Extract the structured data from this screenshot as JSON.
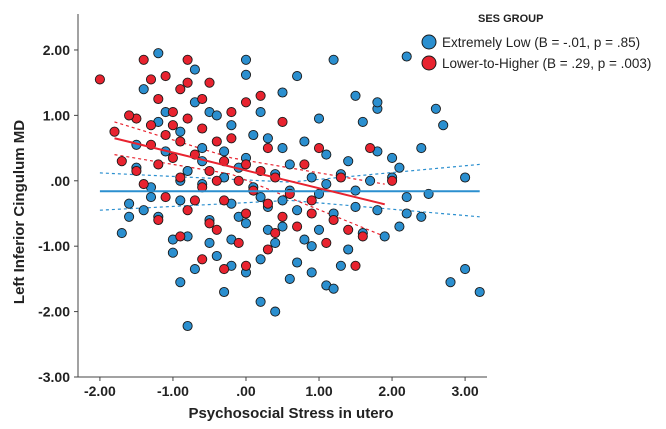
{
  "chart_data": {
    "type": "scatter",
    "xlabel": "Psychosocial Stress in utero",
    "ylabel": "Left Inferior Cingulum MD",
    "xlim": [
      -2.3,
      3.3
    ],
    "ylim": [
      -3.0,
      2.55
    ],
    "xticks": [
      -2.0,
      -1.0,
      0.0,
      1.0,
      2.0,
      3.0
    ],
    "xtick_labels": [
      "-2.00",
      "-1.00",
      ".00",
      "1.00",
      "2.00",
      "3.00"
    ],
    "yticks": [
      2.0,
      1.0,
      0.0,
      -1.0,
      -2.0,
      -3.0
    ],
    "ytick_labels": [
      "2.00",
      "1.00",
      ".00",
      "-1.00",
      "-2.00",
      "-3.00"
    ],
    "legend": {
      "title": "SES GROUP",
      "position": "top-right",
      "entries": [
        {
          "label": "Extremely Low (B = -.01, p = .85)",
          "color": "#2b8fcf"
        },
        {
          "label": "Lower-to-Higher (B = .29, p = .003)",
          "color": "#e8232f"
        }
      ]
    },
    "series": [
      {
        "name": "Extremely Low (B = -.01, p = .85)",
        "color": "#2b8fcf",
        "fit": {
          "x": [
            -2.0,
            3.2
          ],
          "y": [
            -0.16,
            -0.16
          ],
          "ci_upper_x": [
            -2.0,
            0.6,
            3.2
          ],
          "ci_upper_y": [
            0.12,
            -0.02,
            0.25
          ],
          "ci_lower_x": [
            -2.0,
            0.6,
            3.2
          ],
          "ci_lower_y": [
            -0.45,
            -0.3,
            -0.55
          ]
        },
        "points": [
          [
            -1.4,
            1.4
          ],
          [
            -0.7,
            1.2
          ],
          [
            -0.5,
            1.05
          ],
          [
            -1.2,
            0.9
          ],
          [
            -0.9,
            0.75
          ],
          [
            -0.2,
            0.85
          ],
          [
            0.1,
            0.7
          ],
          [
            0.3,
            0.65
          ],
          [
            -0.6,
            0.5
          ],
          [
            -1.1,
            0.45
          ],
          [
            -0.3,
            0.45
          ],
          [
            0.5,
            0.5
          ],
          [
            0.8,
            0.6
          ],
          [
            1.1,
            0.4
          ],
          [
            1.4,
            0.3
          ],
          [
            -1.5,
            0.2
          ],
          [
            -0.8,
            0.15
          ],
          [
            -0.1,
            0.2
          ],
          [
            0.4,
            0.1
          ],
          [
            0.9,
            0.05
          ],
          [
            1.3,
            0.1
          ],
          [
            1.7,
            0.0
          ],
          [
            2.0,
            0.05
          ],
          [
            -1.3,
            -0.1
          ],
          [
            -0.6,
            -0.05
          ],
          [
            0.1,
            -0.1
          ],
          [
            0.6,
            -0.15
          ],
          [
            1.0,
            -0.2
          ],
          [
            1.5,
            -0.15
          ],
          [
            2.2,
            -0.25
          ],
          [
            2.5,
            -0.2
          ],
          [
            -1.6,
            -0.35
          ],
          [
            -0.9,
            -0.3
          ],
          [
            -0.2,
            -0.35
          ],
          [
            0.3,
            -0.4
          ],
          [
            0.7,
            -0.45
          ],
          [
            1.2,
            -0.5
          ],
          [
            1.8,
            -0.45
          ],
          [
            2.4,
            -0.55
          ],
          [
            -1.2,
            -0.55
          ],
          [
            -0.5,
            -0.6
          ],
          [
            0.0,
            -0.65
          ],
          [
            0.5,
            -0.7
          ],
          [
            1.0,
            -0.75
          ],
          [
            1.6,
            -0.8
          ],
          [
            2.1,
            -0.7
          ],
          [
            -0.8,
            -0.85
          ],
          [
            -0.2,
            -0.9
          ],
          [
            0.4,
            -0.95
          ],
          [
            0.9,
            -1.0
          ],
          [
            1.4,
            -1.05
          ],
          [
            -1.0,
            -1.1
          ],
          [
            -0.4,
            -1.15
          ],
          [
            0.2,
            -1.2
          ],
          [
            0.7,
            -1.25
          ],
          [
            1.3,
            -1.3
          ],
          [
            -0.7,
            -1.35
          ],
          [
            0.0,
            -1.4
          ],
          [
            0.6,
            -1.5
          ],
          [
            1.1,
            -1.6
          ],
          [
            -0.9,
            -1.55
          ],
          [
            -0.3,
            -1.7
          ],
          [
            0.2,
            -1.85
          ],
          [
            -0.8,
            -2.22
          ],
          [
            0.4,
            -2.0
          ],
          [
            1.2,
            -1.65
          ],
          [
            2.8,
            -1.55
          ],
          [
            3.0,
            -1.35
          ],
          [
            3.2,
            -1.7
          ],
          [
            3.0,
            0.05
          ],
          [
            2.7,
            0.85
          ],
          [
            2.6,
            1.1
          ],
          [
            2.4,
            0.5
          ],
          [
            1.8,
            1.1
          ],
          [
            1.8,
            1.2
          ],
          [
            2.2,
            1.9
          ],
          [
            1.2,
            1.85
          ],
          [
            0.7,
            1.6
          ],
          [
            0.0,
            1.85
          ],
          [
            -1.2,
            1.95
          ],
          [
            -0.7,
            1.7
          ],
          [
            0.0,
            1.62
          ],
          [
            0.5,
            1.35
          ],
          [
            1.5,
            1.3
          ],
          [
            -0.4,
            1.0
          ],
          [
            1.6,
            0.9
          ],
          [
            2.0,
            0.35
          ],
          [
            1.0,
            0.95
          ],
          [
            -1.1,
            1.05
          ],
          [
            0.2,
            1.05
          ],
          [
            -1.6,
            -0.55
          ],
          [
            -1.7,
            -0.8
          ],
          [
            -1.3,
            -0.25
          ],
          [
            -1.4,
            -0.45
          ],
          [
            -0.1,
            -0.55
          ],
          [
            0.8,
            -0.9
          ],
          [
            0.5,
            -0.3
          ],
          [
            1.9,
            -0.85
          ],
          [
            2.2,
            -0.5
          ],
          [
            -0.6,
            0.3
          ],
          [
            0.0,
            0.35
          ],
          [
            1.8,
            0.45
          ],
          [
            2.1,
            0.2
          ],
          [
            -0.2,
            -1.3
          ],
          [
            0.9,
            -1.4
          ],
          [
            -1.0,
            -0.9
          ],
          [
            -0.5,
            -0.95
          ],
          [
            0.3,
            -0.75
          ],
          [
            1.5,
            -0.4
          ],
          [
            1.1,
            -0.05
          ],
          [
            -0.3,
            0.05
          ],
          [
            0.2,
            -0.25
          ],
          [
            -1.5,
            0.55
          ],
          [
            -0.9,
            0.0
          ],
          [
            0.6,
            0.25
          ]
        ]
      },
      {
        "name": "Lower-to-Higher (B = .29, p = .003)",
        "color": "#e8232f",
        "fit": {
          "x": [
            -1.8,
            1.9
          ],
          "y": [
            0.65,
            -0.36
          ],
          "ci_upper_x": [
            -1.8,
            -0.2,
            1.9
          ],
          "ci_upper_y": [
            0.9,
            0.35,
            -0.05
          ],
          "ci_lower_x": [
            -1.8,
            -0.2,
            1.9
          ],
          "ci_lower_y": [
            0.4,
            0.1,
            -0.85
          ]
        },
        "points": [
          [
            -2.0,
            1.55
          ],
          [
            -1.3,
            1.55
          ],
          [
            -0.8,
            1.85
          ],
          [
            -1.4,
            1.85
          ],
          [
            -0.9,
            1.4
          ],
          [
            -1.2,
            1.25
          ],
          [
            -1.0,
            1.05
          ],
          [
            -0.8,
            0.95
          ],
          [
            -1.5,
            0.95
          ],
          [
            -0.6,
            0.8
          ],
          [
            -1.1,
            0.7
          ],
          [
            -1.8,
            0.75
          ],
          [
            -0.9,
            0.6
          ],
          [
            -0.4,
            0.6
          ],
          [
            -1.3,
            0.55
          ],
          [
            -0.7,
            0.4
          ],
          [
            -1.0,
            0.35
          ],
          [
            -0.3,
            0.3
          ],
          [
            0.0,
            0.25
          ],
          [
            -1.2,
            0.25
          ],
          [
            -0.5,
            0.15
          ],
          [
            0.2,
            0.15
          ],
          [
            -0.9,
            0.05
          ],
          [
            -0.1,
            0.0
          ],
          [
            0.4,
            0.05
          ],
          [
            -1.4,
            -0.05
          ],
          [
            -0.6,
            -0.1
          ],
          [
            0.1,
            -0.15
          ],
          [
            0.6,
            -0.2
          ],
          [
            -1.1,
            -0.25
          ],
          [
            -0.3,
            -0.3
          ],
          [
            0.3,
            -0.35
          ],
          [
            0.9,
            -0.3
          ],
          [
            -0.8,
            -0.45
          ],
          [
            0.0,
            -0.5
          ],
          [
            0.5,
            -0.55
          ],
          [
            1.2,
            -0.6
          ],
          [
            -1.2,
            -0.6
          ],
          [
            -0.5,
            -0.65
          ],
          [
            0.7,
            -0.7
          ],
          [
            1.4,
            -0.75
          ],
          [
            -0.9,
            -0.85
          ],
          [
            -0.1,
            -0.95
          ],
          [
            1.6,
            -0.85
          ],
          [
            0.3,
            -1.05
          ],
          [
            -0.6,
            -1.2
          ],
          [
            0.0,
            -1.3
          ],
          [
            -0.3,
            -1.35
          ],
          [
            1.5,
            -1.3
          ],
          [
            2.0,
            0.0
          ],
          [
            1.7,
            0.5
          ],
          [
            1.0,
            0.5
          ],
          [
            0.5,
            0.9
          ],
          [
            0.0,
            1.2
          ],
          [
            0.2,
            1.3
          ],
          [
            -0.5,
            1.5
          ],
          [
            -0.8,
            1.5
          ],
          [
            -1.6,
            1.0
          ],
          [
            -1.3,
            0.85
          ],
          [
            -0.2,
            0.65
          ],
          [
            0.8,
            0.25
          ],
          [
            1.3,
            0.05
          ],
          [
            -1.7,
            0.3
          ],
          [
            -1.5,
            0.15
          ],
          [
            -0.7,
            -0.3
          ],
          [
            0.9,
            -0.5
          ],
          [
            -0.4,
            -0.75
          ],
          [
            0.4,
            -0.8
          ],
          [
            1.1,
            -0.95
          ],
          [
            -1.0,
            0.85
          ],
          [
            -0.2,
            1.05
          ],
          [
            0.3,
            0.5
          ],
          [
            -0.6,
            1.25
          ],
          [
            -1.1,
            1.6
          ],
          [
            -0.4,
            0.0
          ]
        ]
      }
    ]
  }
}
